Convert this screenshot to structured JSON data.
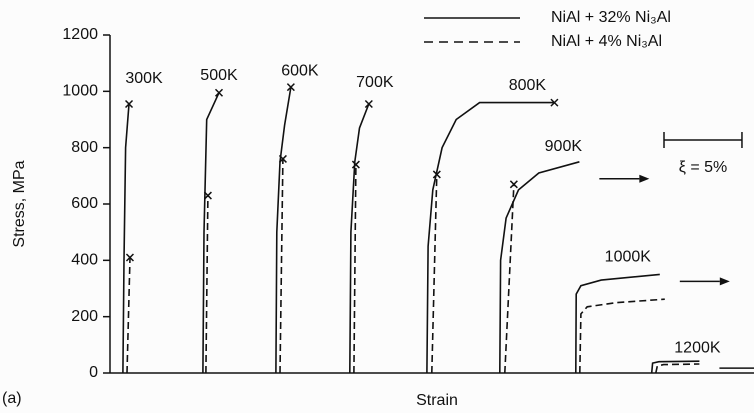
{
  "chart_data": {
    "type": "line",
    "ylabel": "Stress, MPa",
    "xlabel": "Strain",
    "panel_label": "(a)",
    "ylim": [
      0,
      1200
    ],
    "yticks": [
      0,
      200,
      400,
      600,
      800,
      1000,
      1200
    ],
    "xlim": [
      0,
      41.3
    ],
    "scale_bar": {
      "label": "ξ = 5%",
      "length": 5
    },
    "series": [
      {
        "name": "NiAl + 32% Ni₃Al",
        "color": "#111111",
        "dash": false,
        "curves": [
          {
            "label": "300K",
            "fracture": true,
            "x": [
              0.83,
              0.9,
              1.0,
              1.22
            ],
            "values": [
              0,
              400,
              800,
              955
            ]
          },
          {
            "label": "500K",
            "fracture": true,
            "x": [
              5.96,
              6.03,
              6.2,
              6.99
            ],
            "values": [
              0,
              500,
              900,
              995
            ]
          },
          {
            "label": "600K",
            "fracture": true,
            "x": [
              10.64,
              10.7,
              10.9,
              11.2,
              11.6
            ],
            "values": [
              0,
              500,
              750,
              880,
              1015
            ]
          },
          {
            "label": "700K",
            "fracture": true,
            "x": [
              15.38,
              15.45,
              15.7,
              16.0,
              16.6
            ],
            "values": [
              0,
              500,
              750,
              870,
              955
            ]
          },
          {
            "label": "800K",
            "fracture": true,
            "x": [
              20.32,
              20.4,
              20.7,
              21.3,
              22.2,
              23.7,
              28.5
            ],
            "values": [
              0,
              450,
              650,
              800,
              900,
              960,
              960
            ]
          },
          {
            "label": "900K",
            "fracture": false,
            "x": [
              25.0,
              25.05,
              25.4,
              26.2,
              27.5,
              30.1
            ],
            "values": [
              0,
              400,
              550,
              650,
              710,
              750
            ]
          },
          {
            "label": "1000K",
            "fracture": false,
            "x": [
              29.87,
              29.9,
              30.2,
              31.5,
              35.26
            ],
            "values": [
              0,
              280,
              310,
              330,
              350
            ]
          },
          {
            "label": "1200K",
            "fracture": false,
            "x": [
              34.74,
              34.8,
              35.2,
              37.8
            ],
            "values": [
              0,
              35,
              40,
              42
            ]
          }
        ]
      },
      {
        "name": "NiAl + 4% Ni₃Al",
        "color": "#111111",
        "dash": true,
        "curves": [
          {
            "fracture": true,
            "x": [
              1.09,
              1.28
            ],
            "values": [
              0,
              410
            ]
          },
          {
            "fracture": true,
            "x": [
              6.15,
              6.28
            ],
            "values": [
              0,
              630
            ]
          },
          {
            "fracture": true,
            "x": [
              10.9,
              11.09
            ],
            "values": [
              0,
              760
            ]
          },
          {
            "fracture": true,
            "x": [
              15.64,
              15.77
            ],
            "values": [
              0,
              740
            ]
          },
          {
            "fracture": true,
            "x": [
              20.64,
              20.96
            ],
            "values": [
              0,
              705
            ]
          },
          {
            "fracture": true,
            "x": [
              25.32,
              25.9
            ],
            "values": [
              0,
              670
            ]
          },
          {
            "fracture": false,
            "x": [
              30.13,
              30.2,
              30.6,
              32.5,
              35.58
            ],
            "values": [
              0,
              210,
              235,
              250,
              262
            ]
          },
          {
            "fracture": false,
            "x": [
              35.0,
              35.1,
              35.5,
              37.8
            ],
            "values": [
              0,
              25,
              30,
              32
            ]
          }
        ]
      }
    ]
  }
}
